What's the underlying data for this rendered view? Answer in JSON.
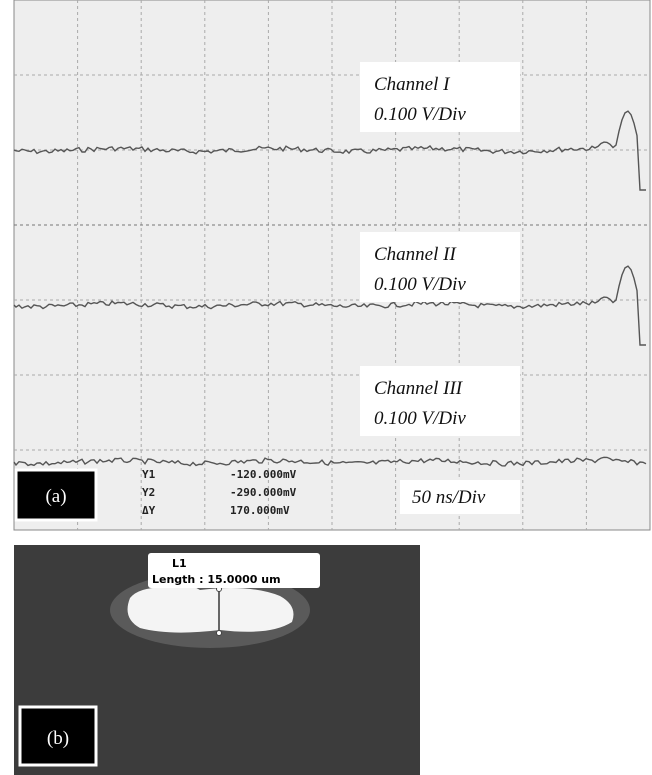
{
  "panel_a": {
    "label": "(a)",
    "channels": [
      {
        "name": "Channel I",
        "scale": "0.100 V/Div"
      },
      {
        "name": "Channel II",
        "scale": "0.100 V/Div"
      },
      {
        "name": "Channel III",
        "scale": "0.100 V/Div"
      }
    ],
    "timebase": "50 ns/Div",
    "cursors": [
      {
        "name": "Y1",
        "reading": "-120.000mV"
      },
      {
        "name": "Y2",
        "reading": "-290.000mV"
      },
      {
        "name": "ΔY",
        "reading": "170.000mV"
      }
    ]
  },
  "panel_b": {
    "label": "(b)",
    "marker": "L1",
    "measurement": "Length : 15.0000 um"
  }
}
